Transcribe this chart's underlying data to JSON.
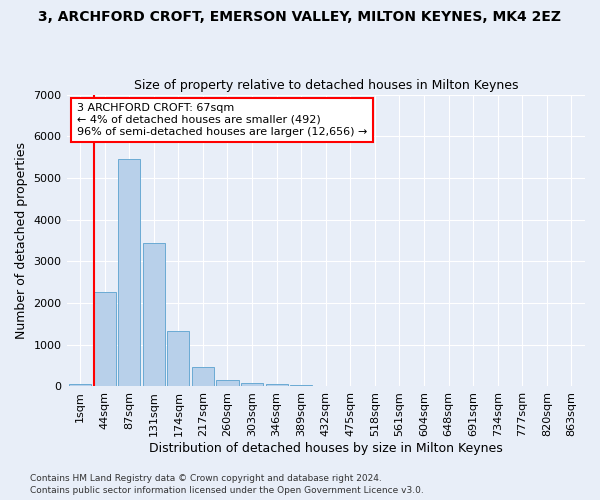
{
  "title": "3, ARCHFORD CROFT, EMERSON VALLEY, MILTON KEYNES, MK4 2EZ",
  "subtitle": "Size of property relative to detached houses in Milton Keynes",
  "xlabel": "Distribution of detached houses by size in Milton Keynes",
  "ylabel": "Number of detached properties",
  "footer_line1": "Contains HM Land Registry data © Crown copyright and database right 2024.",
  "footer_line2": "Contains public sector information licensed under the Open Government Licence v3.0.",
  "bar_labels": [
    "1sqm",
    "44sqm",
    "87sqm",
    "131sqm",
    "174sqm",
    "217sqm",
    "260sqm",
    "303sqm",
    "346sqm",
    "389sqm",
    "432sqm",
    "475sqm",
    "518sqm",
    "561sqm",
    "604sqm",
    "648sqm",
    "691sqm",
    "734sqm",
    "777sqm",
    "820sqm",
    "863sqm"
  ],
  "bar_values": [
    70,
    2270,
    5460,
    3450,
    1320,
    460,
    160,
    90,
    55,
    40,
    0,
    0,
    0,
    0,
    0,
    0,
    0,
    0,
    0,
    0,
    0
  ],
  "bar_color": "#b8d0ea",
  "bar_edge_color": "#6aaad4",
  "marker_color": "red",
  "annotation_text": "3 ARCHFORD CROFT: 67sqm\n← 4% of detached houses are smaller (492)\n96% of semi-detached houses are larger (12,656) →",
  "annotation_box_color": "white",
  "annotation_box_edge_color": "red",
  "ylim": [
    0,
    7000
  ],
  "yticks": [
    0,
    1000,
    2000,
    3000,
    4000,
    5000,
    6000,
    7000
  ],
  "background_color": "#e8eef8",
  "grid_color": "white",
  "title_fontsize": 10,
  "subtitle_fontsize": 9,
  "axis_label_fontsize": 9,
  "tick_fontsize": 8,
  "footer_fontsize": 6.5
}
